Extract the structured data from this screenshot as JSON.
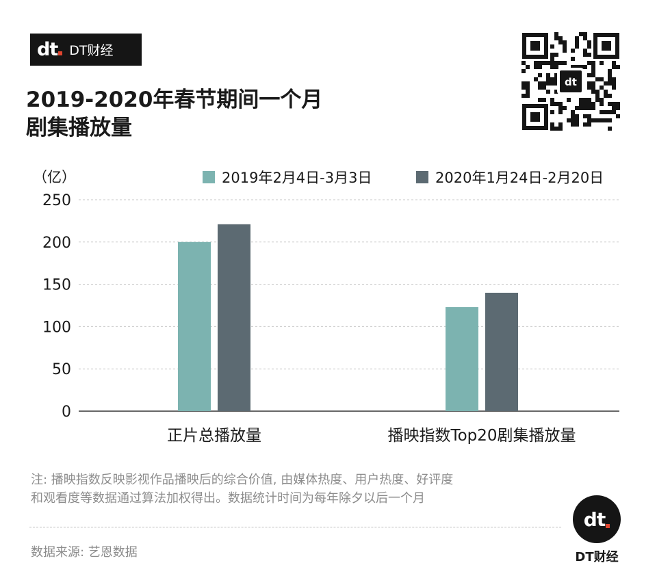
{
  "brand": {
    "logo_text": "dt",
    "name": "DT财经"
  },
  "title": {
    "line1": "2019-2020年春节期间一个月",
    "line2": "剧集播放量"
  },
  "qr_code": {
    "center_logo": "dt"
  },
  "colors": {
    "series_2019": "#7cb3b0",
    "series_2020": "#5c6a72",
    "accent_dot": "#e0452f",
    "badge_bg": "#151515"
  },
  "chart_data": {
    "type": "bar",
    "unit_label": "（亿）",
    "categories": [
      "正片总播放量",
      "播映指数Top20剧集播放量"
    ],
    "series": [
      {
        "name": "2019年2月4日-3月3日",
        "values": [
          200,
          123
        ]
      },
      {
        "name": "2020年1月24日-2月20日",
        "values": [
          221,
          140
        ]
      }
    ],
    "ylim": [
      0,
      250
    ],
    "yticks": [
      0,
      50,
      100,
      150,
      200,
      250
    ],
    "grid": true,
    "legend_position": "top-right"
  },
  "note": {
    "line1": "注: 播映指数反映影视作品播映后的综合价值, 由媒体热度、用户热度、好评度",
    "line2": "和观看度等数据通过算法加权得出。数据统计时间为每年除夕以后一个月"
  },
  "source": "数据来源: 艺恩数据",
  "footer_logo": {
    "logo_text": "dt",
    "name": "DT财经"
  }
}
